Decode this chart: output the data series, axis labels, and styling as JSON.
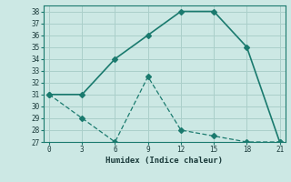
{
  "xlabel": "Humidex (Indice chaleur)",
  "line1_x": [
    0,
    3,
    6,
    9,
    12,
    15,
    18,
    21
  ],
  "line1_y": [
    31,
    31,
    34,
    36,
    38,
    38,
    35,
    27
  ],
  "line2_x": [
    0,
    3,
    6,
    9,
    12,
    15,
    18,
    21
  ],
  "line2_y": [
    31,
    29,
    27,
    32.5,
    28,
    27.5,
    27,
    27
  ],
  "line_color": "#1a7a6e",
  "bg_color": "#cce8e4",
  "grid_color": "#aacfca",
  "ylim": [
    27,
    38.5
  ],
  "xlim": [
    -0.5,
    21.5
  ],
  "yticks": [
    27,
    28,
    29,
    30,
    31,
    32,
    33,
    34,
    35,
    36,
    37,
    38
  ],
  "xticks": [
    0,
    3,
    6,
    9,
    12,
    15,
    18,
    21
  ],
  "markersize": 3,
  "linewidth": 1.2
}
